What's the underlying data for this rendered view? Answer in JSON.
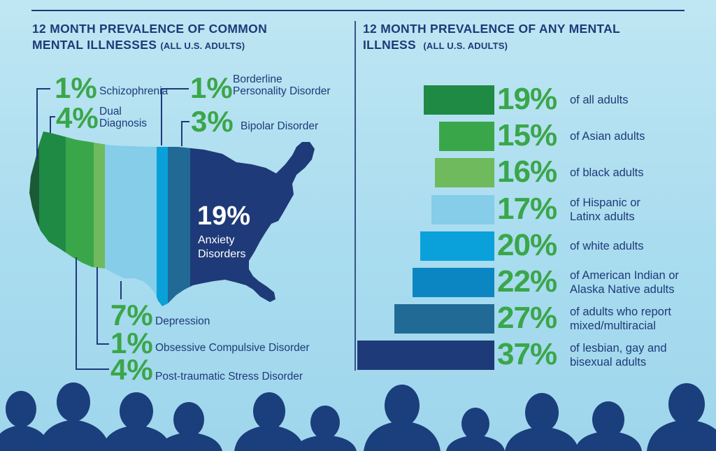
{
  "left_panel": {
    "title_line1": "12 MONTH PREVALENCE OF COMMON",
    "title_line2": "MENTAL ILLNESSES",
    "title_sub": "(ALL U.S. ADULTS)",
    "items": [
      {
        "pct": "1%",
        "label": "Schizophrenia"
      },
      {
        "pct": "4%",
        "label_line1": "Dual",
        "label_line2": "Diagnosis"
      },
      {
        "pct": "1%",
        "label_line1": "Borderline",
        "label_line2": "Personality Disorder"
      },
      {
        "pct": "3%",
        "label": "Bipolar Disorder"
      },
      {
        "pct": "19%",
        "label_line1": "Anxiety",
        "label_line2": "Disorders"
      },
      {
        "pct": "7%",
        "label": "Depression"
      },
      {
        "pct": "1%",
        "label": "Obsessive Compulsive Disorder"
      },
      {
        "pct": "4%",
        "label": "Post-traumatic Stress Disorder"
      }
    ]
  },
  "right_panel": {
    "title_line1": "12 MONTH PREVALENCE OF ANY MENTAL",
    "title_line2": "ILLNESS",
    "title_sub": "(ALL U.S. ADULTS)"
  },
  "chart_data": {
    "type": "bar",
    "orientation": "horizontal",
    "title": "12 MONTH PREVALENCE OF ANY MENTAL ILLNESS (ALL U.S. ADULTS)",
    "categories": [
      "of all adults",
      "of Asian adults",
      "of black adults",
      "of Hispanic or Latinx adults",
      "of white adults",
      "of American Indian or Alaska Native adults",
      "of adults who report mixed/multiracial",
      "of lesbian, gay and bisexual adults"
    ],
    "label_lines": [
      [
        "of all adults"
      ],
      [
        "of Asian adults"
      ],
      [
        "of black adults"
      ],
      [
        "of Hispanic or",
        "Latinx adults"
      ],
      [
        "of white adults"
      ],
      [
        "of American Indian or",
        "Alaska Native adults"
      ],
      [
        "of adults who report",
        "mixed/multiracial"
      ],
      [
        "of lesbian, gay and",
        "bisexual adults"
      ]
    ],
    "values": [
      19,
      15,
      16,
      17,
      20,
      22,
      27,
      37
    ],
    "value_labels": [
      "19%",
      "15%",
      "16%",
      "17%",
      "20%",
      "22%",
      "27%",
      "37%"
    ],
    "colors": [
      "#1e8a44",
      "#3aa64a",
      "#6fba5d",
      "#85cde9",
      "#0aa1da",
      "#0b86c2",
      "#226a96",
      "#1e3a78"
    ],
    "unit": "%"
  }
}
